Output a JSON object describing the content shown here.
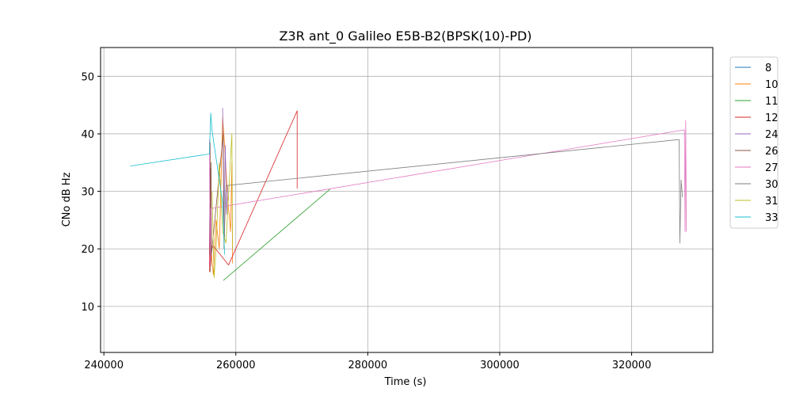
{
  "chart_data": {
    "type": "line",
    "title": "Z3R ant_0 Galileo E5B-B2(BPSK(10)-PD)",
    "xlabel": "Time (s)",
    "ylabel": "CNo dB Hz",
    "xlim": [
      239500,
      332300
    ],
    "ylim": [
      2,
      55
    ],
    "xticks": [
      240000,
      260000,
      280000,
      300000,
      320000
    ],
    "xtick_labels": [
      "240000",
      "260000",
      "280000",
      "300000",
      "320000"
    ],
    "yticks": [
      10,
      20,
      30,
      40,
      50
    ],
    "ytick_labels": [
      "10",
      "20",
      "30",
      "40",
      "50"
    ],
    "grid": true,
    "legend_position": "right",
    "series": [
      {
        "name": "8",
        "color": "#1f77b4",
        "points": [
          [
            256000,
            19
          ],
          [
            256050,
            28
          ],
          [
            256100,
            21
          ],
          [
            256150,
            34
          ]
        ]
      },
      {
        "name": "10",
        "color": "#ff7f0e",
        "points": [
          [
            256300,
            19
          ],
          [
            256600,
            15.5
          ],
          [
            257000,
            25
          ],
          [
            257500,
            20
          ],
          [
            258000,
            43
          ],
          [
            258300,
            38
          ],
          [
            258700,
            30
          ],
          [
            259200,
            23
          ],
          [
            259400,
            35
          ],
          [
            259500,
            17.5
          ]
        ]
      },
      {
        "name": "11",
        "color": "#2ca02c",
        "points": [
          [
            258100,
            14.5
          ],
          [
            274300,
            30.4
          ]
        ]
      },
      {
        "name": "12",
        "color": "#d62728",
        "points": [
          [
            256000,
            16
          ],
          [
            256100,
            34
          ],
          [
            256200,
            17
          ],
          [
            256300,
            20
          ],
          [
            256600,
            20.5
          ],
          [
            258900,
            17.2
          ],
          [
            269300,
            44
          ],
          [
            269300,
            30.5
          ]
        ]
      },
      {
        "name": "24",
        "color": "#9467bd",
        "points": [
          [
            258000,
            44.5
          ],
          [
            258200,
            24
          ],
          [
            258400,
            38
          ],
          [
            258600,
            26
          ],
          [
            258800,
            31
          ]
        ]
      },
      {
        "name": "26",
        "color": "#8c564b",
        "points": [
          [
            256100,
            38.5
          ],
          [
            256150,
            16
          ],
          [
            256250,
            35
          ],
          [
            256300,
            19
          ],
          [
            258100,
            40
          ],
          [
            258200,
            24
          ],
          [
            258300,
            22
          ]
        ]
      },
      {
        "name": "27",
        "color": "#e377c2",
        "points": [
          [
            256000,
            39
          ],
          [
            256100,
            17
          ],
          [
            256200,
            27
          ],
          [
            328000,
            40.7
          ],
          [
            328100,
            23
          ],
          [
            328200,
            42.3
          ],
          [
            328300,
            23
          ]
        ]
      },
      {
        "name": "30",
        "color": "#7f7f7f",
        "points": [
          [
            258100,
            30
          ],
          [
            258200,
            20
          ],
          [
            258500,
            31
          ],
          [
            327200,
            39
          ],
          [
            327300,
            21
          ],
          [
            327500,
            32
          ],
          [
            327700,
            29
          ]
        ]
      },
      {
        "name": "31",
        "color": "#bcbd22",
        "points": [
          [
            256400,
            30
          ],
          [
            256700,
            15
          ],
          [
            257000,
            20
          ],
          [
            257500,
            35
          ],
          [
            258000,
            23
          ],
          [
            258500,
            21
          ],
          [
            259400,
            40
          ],
          [
            259500,
            20
          ]
        ]
      },
      {
        "name": "33",
        "color": "#17becf",
        "points": [
          [
            244000,
            34.4
          ],
          [
            256000,
            36.5
          ],
          [
            256200,
            43.6
          ],
          [
            256400,
            40.5
          ],
          [
            258000,
            28
          ],
          [
            258300,
            19
          ]
        ]
      }
    ]
  }
}
